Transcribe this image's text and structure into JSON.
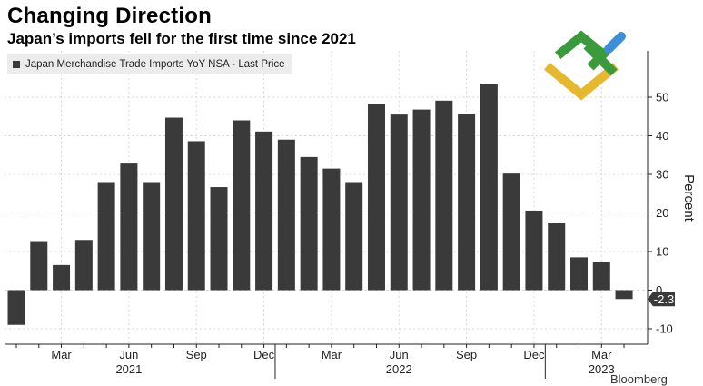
{
  "header": {
    "title": "Changing Direction",
    "subtitle": "Japan’s imports fell for the first time since 2021"
  },
  "legend": {
    "label": "Japan Merchandise Trade Imports YoY NSA - Last Price",
    "color": "#3a3a3a"
  },
  "source": "Bloomberg",
  "colors": {
    "bar": "#3a3a3a",
    "grid": "#d8d8d8",
    "axis": "#222222",
    "last_badge_bg": "#3a3a3a",
    "last_badge_text": "#ffffff"
  },
  "chart_data": {
    "type": "bar",
    "title": "Changing Direction",
    "subtitle": "Japan’s imports fell for the first time since 2021",
    "ylabel": "Percent",
    "xlabel": "",
    "ylim": [
      -14,
      62
    ],
    "y_ticks": [
      -10,
      0,
      10,
      20,
      30,
      40,
      50
    ],
    "grid": true,
    "last_value_label": "-2.3",
    "categories": [
      "Jan 2021",
      "Feb 2021",
      "Mar 2021",
      "Apr 2021",
      "May 2021",
      "Jun 2021",
      "Jul 2021",
      "Aug 2021",
      "Sep 2021",
      "Oct 2021",
      "Nov 2021",
      "Dec 2021",
      "Jan 2022",
      "Feb 2022",
      "Mar 2022",
      "Apr 2022",
      "May 2022",
      "Jun 2022",
      "Jul 2022",
      "Aug 2022",
      "Sep 2022",
      "Oct 2022",
      "Nov 2022",
      "Dec 2022",
      "Jan 2023",
      "Feb 2023",
      "Mar 2023",
      "Apr 2023"
    ],
    "values": [
      -9.0,
      12.7,
      6.5,
      13.0,
      28.0,
      32.8,
      28.0,
      44.7,
      38.6,
      26.7,
      44.0,
      41.1,
      39.0,
      34.5,
      31.5,
      28.0,
      48.2,
      45.5,
      46.8,
      49.1,
      45.6,
      53.5,
      30.2,
      20.6,
      17.5,
      8.5,
      7.3,
      -2.3
    ],
    "x_tick_labels": [
      {
        "index": 2,
        "label": "Mar"
      },
      {
        "index": 5,
        "label": "Jun"
      },
      {
        "index": 8,
        "label": "Sep"
      },
      {
        "index": 11,
        "label": "Dec"
      },
      {
        "index": 14,
        "label": "Mar"
      },
      {
        "index": 17,
        "label": "Jun"
      },
      {
        "index": 20,
        "label": "Sep"
      },
      {
        "index": 23,
        "label": "Dec"
      },
      {
        "index": 26,
        "label": "Mar"
      }
    ],
    "year_labels": [
      {
        "index": 5,
        "label": "2021"
      },
      {
        "index": 17,
        "label": "2022"
      },
      {
        "index": 26,
        "label": "2023"
      }
    ]
  }
}
